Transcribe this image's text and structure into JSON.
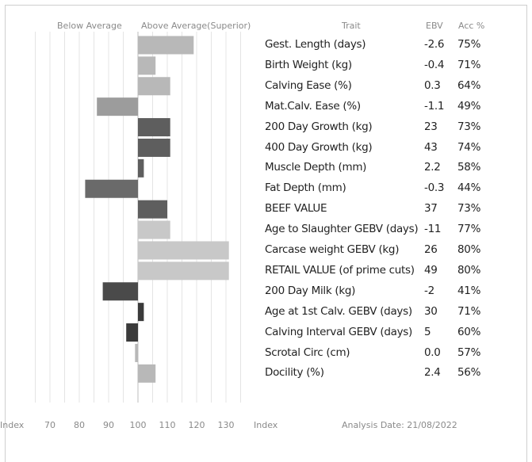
{
  "headers": {
    "below": "Below Average",
    "above": "Above Average(Superior)",
    "trait": "Trait",
    "ebv": "EBV",
    "acc": "Acc %"
  },
  "footer": {
    "index_left": "Index",
    "index_right": "Index",
    "analysis": "Analysis Date: 21/08/2022"
  },
  "chart_data": {
    "type": "bar",
    "orientation": "horizontal",
    "baseline": 100,
    "xlim": [
      65,
      135
    ],
    "xticks": [
      70,
      80,
      90,
      100,
      110,
      120,
      130
    ],
    "grid": true,
    "categories": [
      "Gest. Length (days)",
      "Birth Weight (kg)",
      "Calving Ease (%)",
      "Mat.Calv. Ease (%)",
      "200 Day Growth (kg)",
      "400 Day Growth (kg)",
      "Muscle Depth (mm)",
      "Fat Depth (mm)",
      "BEEF VALUE",
      "Age to Slaughter GEBV (days)",
      "Carcase weight GEBV (kg)",
      "RETAIL VALUE (of prime cuts)",
      "200 Day Milk (kg)",
      "Age at 1st Calv. GEBV (days)",
      "Calving Interval GEBV (days)",
      "Scrotal Circ (cm)",
      "Docility (%)"
    ],
    "index_values": [
      119,
      106,
      111,
      86,
      111,
      111,
      102,
      82,
      110,
      111,
      131,
      131,
      88,
      102,
      96,
      99,
      106
    ],
    "ebv": [
      "-2.6",
      "-0.4",
      "0.3",
      "-1.1",
      "23",
      "43",
      "2.2",
      "-0.3",
      "37",
      "-11",
      "26",
      "49",
      "-2",
      "30",
      "5",
      "0.0",
      "2.4"
    ],
    "acc": [
      "75%",
      "71%",
      "64%",
      "49%",
      "73%",
      "74%",
      "58%",
      "44%",
      "73%",
      "77%",
      "80%",
      "80%",
      "41%",
      "71%",
      "60%",
      "57%",
      "56%"
    ],
    "colors": [
      "#b8b8b8",
      "#b8b8b8",
      "#b8b8b8",
      "#9c9c9c",
      "#5e5e5e",
      "#5e5e5e",
      "#5e5e5e",
      "#6a6a6a",
      "#5e5e5e",
      "#c8c8c8",
      "#c8c8c8",
      "#c8c8c8",
      "#4a4a4a",
      "#3a3a3a",
      "#3a3a3a",
      "#b8b8b8",
      "#b8b8b8"
    ]
  }
}
